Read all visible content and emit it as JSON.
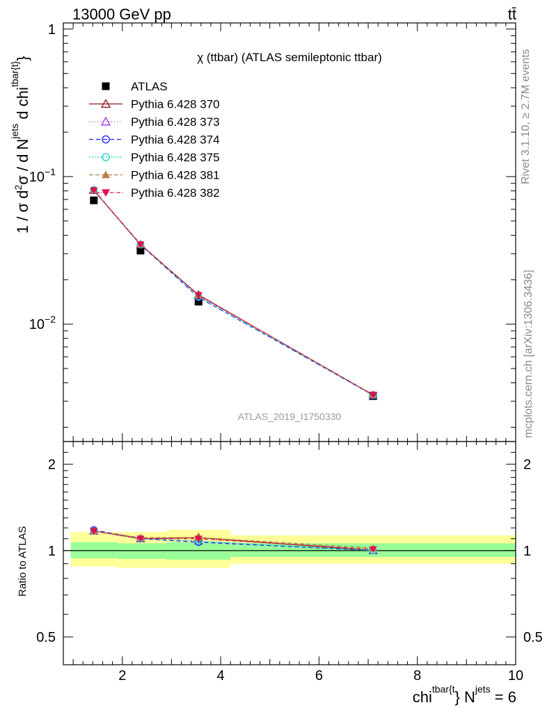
{
  "header": {
    "left": "13000 GeV pp",
    "right": "tt̄"
  },
  "side": {
    "rivet": "Rivet 3.1.10, ≥ 2.7M events",
    "mcplots": "mcplots.cern.ch [arXiv:1306.3436]"
  },
  "watermark": "ATLAS_2019_I1750330",
  "colors": {
    "data": "#000000",
    "p370": "#8b1a1a",
    "p373": "#9b30e0",
    "p374": "#1a1aff",
    "p375": "#19d4c4",
    "p381": "#b5804a",
    "p382": "#e0104f",
    "band_inner": "#99ff99",
    "band_outer": "#ffff99"
  },
  "chart_data": [
    {
      "type": "line",
      "title": "χ (ttbar) (ATLAS semileptonic ttbar)",
      "ylabel": {
        "pre": "1 / σ d",
        "sup2": "2",
        "mid": "σ / d N",
        "sup_jets": "jets",
        "mid2": " d chi",
        "sup_tbar": "tbar{t}",
        "post": "}"
      },
      "yscale": "log",
      "ylim": [
        0.0016,
        1.1
      ],
      "xlim": [
        0.8,
        10.0
      ],
      "yticks": [
        {
          "v": 1,
          "label": "1"
        },
        {
          "v": 0.1,
          "label": "10",
          "exp": "−1"
        },
        {
          "v": 0.01,
          "label": "10",
          "exp": "−2"
        }
      ],
      "x": [
        1.42,
        2.37,
        3.55,
        7.1
      ],
      "data": {
        "name": "ATLAS",
        "values": [
          0.069,
          0.0315,
          0.0142,
          0.00325
        ]
      },
      "series": [
        {
          "name": "Pythia 6.428 370",
          "key": "p370",
          "marker": "triangle-open",
          "dash": "",
          "values": [
            0.0805,
            0.0345,
            0.0158,
            0.0033
          ]
        },
        {
          "name": "Pythia 6.428 373",
          "key": "p373",
          "marker": "triangle-open",
          "dash": "1,3",
          "values": [
            0.0808,
            0.0347,
            0.0155,
            0.0033
          ]
        },
        {
          "name": "Pythia 6.428 374",
          "key": "p374",
          "marker": "circle-open",
          "dash": "6,4",
          "values": [
            0.0812,
            0.0345,
            0.0152,
            0.0033
          ]
        },
        {
          "name": "Pythia 6.428 375",
          "key": "p375",
          "marker": "circle-open",
          "dash": "2,2",
          "values": [
            0.081,
            0.0346,
            0.0153,
            0.0033
          ]
        },
        {
          "name": "Pythia 6.428 381",
          "key": "p381",
          "marker": "triangle",
          "dash": "6,3",
          "values": [
            0.0807,
            0.0348,
            0.0157,
            0.00332
          ]
        },
        {
          "name": "Pythia 6.428 382",
          "key": "p382",
          "marker": "triangle-down",
          "dash": "5,2,1,2",
          "values": [
            0.0806,
            0.0347,
            0.0157,
            0.00332
          ]
        }
      ]
    },
    {
      "type": "line",
      "ylabel": "Ratio to ATLAS",
      "xlabel": {
        "pre": "chi",
        "sup_tbar": "tbar{t",
        "mid": "} N",
        "sup_jets": "jets",
        "post": " = 6"
      },
      "ylim": [
        0.4,
        2.4
      ],
      "xlim": [
        0.8,
        10.0
      ],
      "yticks": [
        0.5,
        1,
        2
      ],
      "xticks": [
        2,
        4,
        6,
        8,
        10
      ],
      "bins": [
        [
          0.95,
          1.9
        ],
        [
          1.9,
          2.9
        ],
        [
          2.9,
          4.2
        ],
        [
          4.2,
          10.0
        ]
      ],
      "band_inner": [
        [
          0.94,
          1.07
        ],
        [
          0.935,
          1.06
        ],
        [
          0.93,
          1.07
        ],
        [
          0.95,
          1.06
        ]
      ],
      "band_outer": [
        [
          0.88,
          1.16
        ],
        [
          0.87,
          1.16
        ],
        [
          0.87,
          1.18
        ],
        [
          0.9,
          1.13
        ]
      ],
      "x": [
        1.42,
        2.37,
        3.55,
        7.1
      ],
      "series": [
        {
          "name": "Pythia 6.428 370",
          "key": "p370",
          "values": [
            1.17,
            1.1,
            1.11,
            1.0
          ]
        },
        {
          "name": "Pythia 6.428 373",
          "key": "p373",
          "values": [
            1.17,
            1.1,
            1.08,
            1.0
          ]
        },
        {
          "name": "Pythia 6.428 374",
          "key": "p374",
          "values": [
            1.18,
            1.1,
            1.07,
            1.0
          ]
        },
        {
          "name": "Pythia 6.428 375",
          "key": "p375",
          "values": [
            1.17,
            1.1,
            1.08,
            1.0
          ]
        },
        {
          "name": "Pythia 6.428 381",
          "key": "p381",
          "values": [
            1.17,
            1.11,
            1.11,
            1.02
          ]
        },
        {
          "name": "Pythia 6.428 382",
          "key": "p382",
          "values": [
            1.17,
            1.1,
            1.1,
            1.01
          ]
        }
      ]
    }
  ]
}
